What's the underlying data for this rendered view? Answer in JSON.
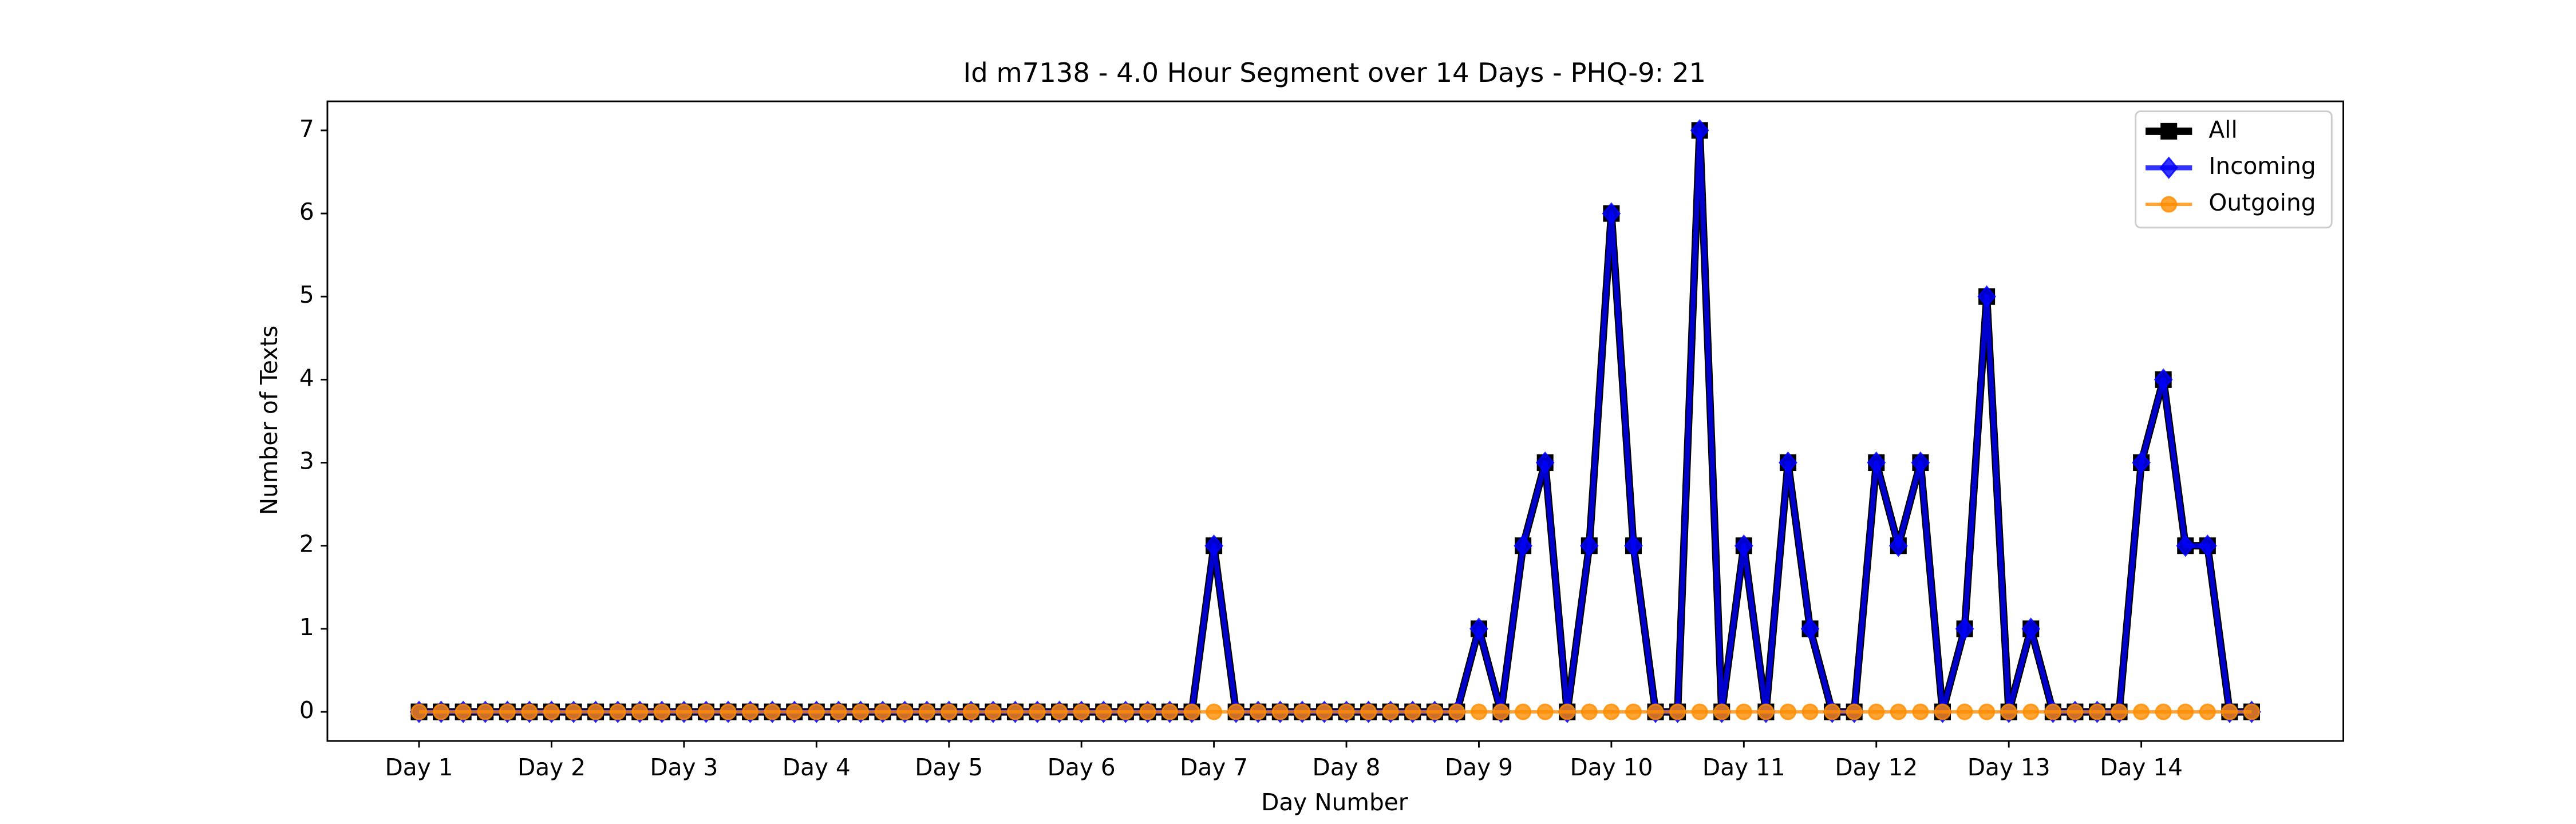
{
  "chart_data": {
    "type": "line",
    "title": "Id m7138 - 4.0 Hour Segment over 14 Days - PHQ-9: 21",
    "xlabel": "Day Number",
    "ylabel": "Number of Texts",
    "x": [
      0,
      1,
      2,
      3,
      4,
      5,
      6,
      7,
      8,
      9,
      10,
      11,
      12,
      13,
      14,
      15,
      16,
      17,
      18,
      19,
      20,
      21,
      22,
      23,
      24,
      25,
      26,
      27,
      28,
      29,
      30,
      31,
      32,
      33,
      34,
      35,
      36,
      37,
      38,
      39,
      40,
      41,
      42,
      43,
      44,
      45,
      46,
      47,
      48,
      49,
      50,
      51,
      52,
      53,
      54,
      55,
      56,
      57,
      58,
      59,
      60,
      61,
      62,
      63,
      64,
      65,
      66,
      67,
      68,
      69,
      70,
      71,
      72,
      73,
      74,
      75,
      76,
      77,
      78,
      79,
      80,
      81,
      82,
      83
    ],
    "series": [
      {
        "name": "All",
        "color": "#000000",
        "marker": "square",
        "values": [
          0,
          0,
          0,
          0,
          0,
          0,
          0,
          0,
          0,
          0,
          0,
          0,
          0,
          0,
          0,
          0,
          0,
          0,
          0,
          0,
          0,
          0,
          0,
          0,
          0,
          0,
          0,
          0,
          0,
          0,
          0,
          0,
          0,
          0,
          0,
          0,
          2,
          0,
          0,
          0,
          0,
          0,
          0,
          0,
          0,
          0,
          0,
          0,
          1,
          0,
          2,
          3,
          0,
          2,
          6,
          2,
          0,
          0,
          7,
          0,
          2,
          0,
          3,
          1,
          0,
          0,
          3,
          2,
          3,
          0,
          1,
          5,
          0,
          1,
          0,
          0,
          0,
          0,
          3,
          4,
          2,
          2,
          0,
          0
        ]
      },
      {
        "name": "Incoming",
        "color": "#0000ff",
        "marker": "diamond",
        "values": [
          0,
          0,
          0,
          0,
          0,
          0,
          0,
          0,
          0,
          0,
          0,
          0,
          0,
          0,
          0,
          0,
          0,
          0,
          0,
          0,
          0,
          0,
          0,
          0,
          0,
          0,
          0,
          0,
          0,
          0,
          0,
          0,
          0,
          0,
          0,
          0,
          2,
          0,
          0,
          0,
          0,
          0,
          0,
          0,
          0,
          0,
          0,
          0,
          1,
          0,
          2,
          3,
          0,
          2,
          6,
          2,
          0,
          0,
          7,
          0,
          2,
          0,
          3,
          1,
          0,
          0,
          3,
          2,
          3,
          0,
          1,
          5,
          0,
          1,
          0,
          0,
          0,
          0,
          3,
          4,
          2,
          2,
          0,
          0
        ]
      },
      {
        "name": "Outgoing",
        "color": "#ff8c00",
        "marker": "circle",
        "values": [
          0,
          0,
          0,
          0,
          0,
          0,
          0,
          0,
          0,
          0,
          0,
          0,
          0,
          0,
          0,
          0,
          0,
          0,
          0,
          0,
          0,
          0,
          0,
          0,
          0,
          0,
          0,
          0,
          0,
          0,
          0,
          0,
          0,
          0,
          0,
          0,
          0,
          0,
          0,
          0,
          0,
          0,
          0,
          0,
          0,
          0,
          0,
          0,
          0,
          0,
          0,
          0,
          0,
          0,
          0,
          0,
          0,
          0,
          0,
          0,
          0,
          0,
          0,
          0,
          0,
          0,
          0,
          0,
          0,
          0,
          0,
          0,
          0,
          0,
          0,
          0,
          0,
          0,
          0,
          0,
          0,
          0,
          0,
          0
        ]
      }
    ],
    "xlim": [
      -4.15,
      87.15
    ],
    "xticks": [
      {
        "value": 0,
        "label": "Day 1"
      },
      {
        "value": 6,
        "label": "Day 2"
      },
      {
        "value": 12,
        "label": "Day 3"
      },
      {
        "value": 18,
        "label": "Day 4"
      },
      {
        "value": 24,
        "label": "Day 5"
      },
      {
        "value": 30,
        "label": "Day 6"
      },
      {
        "value": 36,
        "label": "Day 7"
      },
      {
        "value": 42,
        "label": "Day 8"
      },
      {
        "value": 48,
        "label": "Day 9"
      },
      {
        "value": 54,
        "label": "Day 10"
      },
      {
        "value": 60,
        "label": "Day 11"
      },
      {
        "value": 66,
        "label": "Day 12"
      },
      {
        "value": 72,
        "label": "Day 13"
      },
      {
        "value": 78,
        "label": "Day 14"
      }
    ],
    "ylim": [
      -0.35,
      7.35
    ],
    "yticks": [
      0,
      1,
      2,
      3,
      4,
      5,
      6,
      7
    ],
    "legend": "upper right"
  }
}
